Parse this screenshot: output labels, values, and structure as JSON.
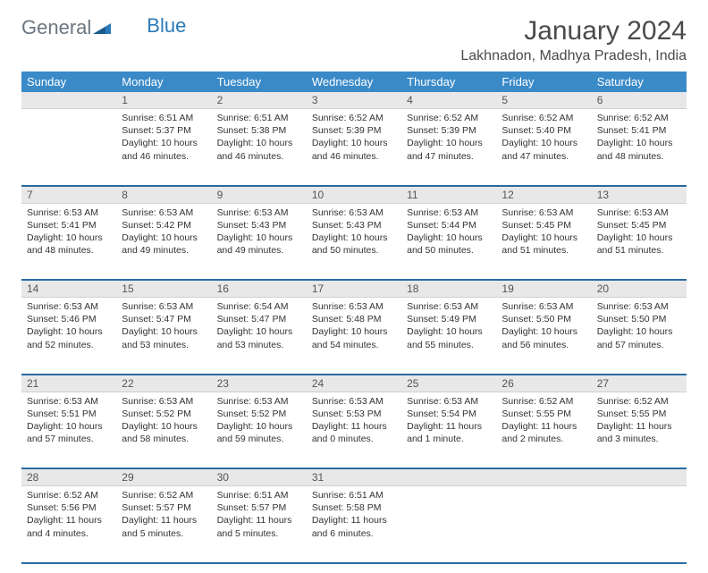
{
  "brand": {
    "part1": "General",
    "part2": "Blue"
  },
  "title": "January 2024",
  "location": "Lakhnadon, Madhya Pradesh, India",
  "colors": {
    "header_bg": "#3a8ac8",
    "daynum_bg": "#e8e8e8",
    "row_divider": "#2a6aa0",
    "text": "#333333",
    "brand_gray": "#6b7680",
    "brand_blue": "#2a7ab8",
    "page_bg": "#ffffff"
  },
  "weekdays": [
    "Sunday",
    "Monday",
    "Tuesday",
    "Wednesday",
    "Thursday",
    "Friday",
    "Saturday"
  ],
  "weeks": [
    {
      "days": [
        null,
        {
          "n": "1",
          "sr": "Sunrise: 6:51 AM",
          "ss": "Sunset: 5:37 PM",
          "dl1": "Daylight: 10 hours",
          "dl2": "and 46 minutes."
        },
        {
          "n": "2",
          "sr": "Sunrise: 6:51 AM",
          "ss": "Sunset: 5:38 PM",
          "dl1": "Daylight: 10 hours",
          "dl2": "and 46 minutes."
        },
        {
          "n": "3",
          "sr": "Sunrise: 6:52 AM",
          "ss": "Sunset: 5:39 PM",
          "dl1": "Daylight: 10 hours",
          "dl2": "and 46 minutes."
        },
        {
          "n": "4",
          "sr": "Sunrise: 6:52 AM",
          "ss": "Sunset: 5:39 PM",
          "dl1": "Daylight: 10 hours",
          "dl2": "and 47 minutes."
        },
        {
          "n": "5",
          "sr": "Sunrise: 6:52 AM",
          "ss": "Sunset: 5:40 PM",
          "dl1": "Daylight: 10 hours",
          "dl2": "and 47 minutes."
        },
        {
          "n": "6",
          "sr": "Sunrise: 6:52 AM",
          "ss": "Sunset: 5:41 PM",
          "dl1": "Daylight: 10 hours",
          "dl2": "and 48 minutes."
        }
      ]
    },
    {
      "days": [
        {
          "n": "7",
          "sr": "Sunrise: 6:53 AM",
          "ss": "Sunset: 5:41 PM",
          "dl1": "Daylight: 10 hours",
          "dl2": "and 48 minutes."
        },
        {
          "n": "8",
          "sr": "Sunrise: 6:53 AM",
          "ss": "Sunset: 5:42 PM",
          "dl1": "Daylight: 10 hours",
          "dl2": "and 49 minutes."
        },
        {
          "n": "9",
          "sr": "Sunrise: 6:53 AM",
          "ss": "Sunset: 5:43 PM",
          "dl1": "Daylight: 10 hours",
          "dl2": "and 49 minutes."
        },
        {
          "n": "10",
          "sr": "Sunrise: 6:53 AM",
          "ss": "Sunset: 5:43 PM",
          "dl1": "Daylight: 10 hours",
          "dl2": "and 50 minutes."
        },
        {
          "n": "11",
          "sr": "Sunrise: 6:53 AM",
          "ss": "Sunset: 5:44 PM",
          "dl1": "Daylight: 10 hours",
          "dl2": "and 50 minutes."
        },
        {
          "n": "12",
          "sr": "Sunrise: 6:53 AM",
          "ss": "Sunset: 5:45 PM",
          "dl1": "Daylight: 10 hours",
          "dl2": "and 51 minutes."
        },
        {
          "n": "13",
          "sr": "Sunrise: 6:53 AM",
          "ss": "Sunset: 5:45 PM",
          "dl1": "Daylight: 10 hours",
          "dl2": "and 51 minutes."
        }
      ]
    },
    {
      "days": [
        {
          "n": "14",
          "sr": "Sunrise: 6:53 AM",
          "ss": "Sunset: 5:46 PM",
          "dl1": "Daylight: 10 hours",
          "dl2": "and 52 minutes."
        },
        {
          "n": "15",
          "sr": "Sunrise: 6:53 AM",
          "ss": "Sunset: 5:47 PM",
          "dl1": "Daylight: 10 hours",
          "dl2": "and 53 minutes."
        },
        {
          "n": "16",
          "sr": "Sunrise: 6:54 AM",
          "ss": "Sunset: 5:47 PM",
          "dl1": "Daylight: 10 hours",
          "dl2": "and 53 minutes."
        },
        {
          "n": "17",
          "sr": "Sunrise: 6:53 AM",
          "ss": "Sunset: 5:48 PM",
          "dl1": "Daylight: 10 hours",
          "dl2": "and 54 minutes."
        },
        {
          "n": "18",
          "sr": "Sunrise: 6:53 AM",
          "ss": "Sunset: 5:49 PM",
          "dl1": "Daylight: 10 hours",
          "dl2": "and 55 minutes."
        },
        {
          "n": "19",
          "sr": "Sunrise: 6:53 AM",
          "ss": "Sunset: 5:50 PM",
          "dl1": "Daylight: 10 hours",
          "dl2": "and 56 minutes."
        },
        {
          "n": "20",
          "sr": "Sunrise: 6:53 AM",
          "ss": "Sunset: 5:50 PM",
          "dl1": "Daylight: 10 hours",
          "dl2": "and 57 minutes."
        }
      ]
    },
    {
      "days": [
        {
          "n": "21",
          "sr": "Sunrise: 6:53 AM",
          "ss": "Sunset: 5:51 PM",
          "dl1": "Daylight: 10 hours",
          "dl2": "and 57 minutes."
        },
        {
          "n": "22",
          "sr": "Sunrise: 6:53 AM",
          "ss": "Sunset: 5:52 PM",
          "dl1": "Daylight: 10 hours",
          "dl2": "and 58 minutes."
        },
        {
          "n": "23",
          "sr": "Sunrise: 6:53 AM",
          "ss": "Sunset: 5:52 PM",
          "dl1": "Daylight: 10 hours",
          "dl2": "and 59 minutes."
        },
        {
          "n": "24",
          "sr": "Sunrise: 6:53 AM",
          "ss": "Sunset: 5:53 PM",
          "dl1": "Daylight: 11 hours",
          "dl2": "and 0 minutes."
        },
        {
          "n": "25",
          "sr": "Sunrise: 6:53 AM",
          "ss": "Sunset: 5:54 PM",
          "dl1": "Daylight: 11 hours",
          "dl2": "and 1 minute."
        },
        {
          "n": "26",
          "sr": "Sunrise: 6:52 AM",
          "ss": "Sunset: 5:55 PM",
          "dl1": "Daylight: 11 hours",
          "dl2": "and 2 minutes."
        },
        {
          "n": "27",
          "sr": "Sunrise: 6:52 AM",
          "ss": "Sunset: 5:55 PM",
          "dl1": "Daylight: 11 hours",
          "dl2": "and 3 minutes."
        }
      ]
    },
    {
      "days": [
        {
          "n": "28",
          "sr": "Sunrise: 6:52 AM",
          "ss": "Sunset: 5:56 PM",
          "dl1": "Daylight: 11 hours",
          "dl2": "and 4 minutes."
        },
        {
          "n": "29",
          "sr": "Sunrise: 6:52 AM",
          "ss": "Sunset: 5:57 PM",
          "dl1": "Daylight: 11 hours",
          "dl2": "and 5 minutes."
        },
        {
          "n": "30",
          "sr": "Sunrise: 6:51 AM",
          "ss": "Sunset: 5:57 PM",
          "dl1": "Daylight: 11 hours",
          "dl2": "and 5 minutes."
        },
        {
          "n": "31",
          "sr": "Sunrise: 6:51 AM",
          "ss": "Sunset: 5:58 PM",
          "dl1": "Daylight: 11 hours",
          "dl2": "and 6 minutes."
        },
        null,
        null,
        null
      ]
    }
  ]
}
